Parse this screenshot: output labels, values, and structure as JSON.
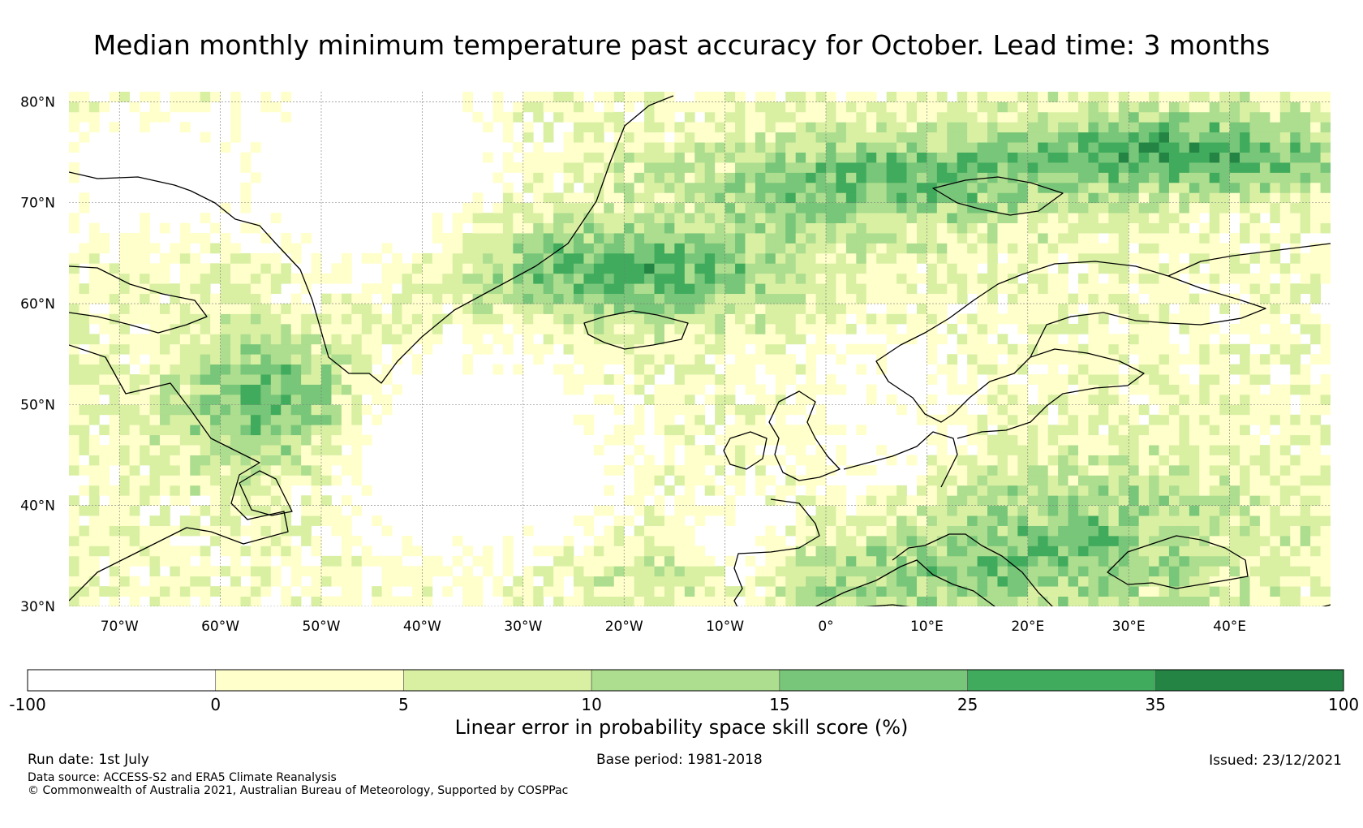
{
  "title": "Median monthly minimum temperature past accuracy for October. Lead time: 3 months",
  "map": {
    "lon_range": [
      -75,
      50
    ],
    "lat_range": [
      30,
      81
    ],
    "lat_ticks": [
      "80°N",
      "70°N",
      "60°N",
      "50°N",
      "40°N",
      "30°N"
    ],
    "lat_values": [
      80,
      70,
      60,
      50,
      40,
      30
    ],
    "lon_ticks": [
      "70°W",
      "60°W",
      "50°W",
      "40°W",
      "30°W",
      "20°W",
      "10°W",
      "0°",
      "10°E",
      "20°E",
      "30°E",
      "40°E"
    ],
    "lon_values": [
      -70,
      -60,
      -50,
      -40,
      -30,
      -20,
      -10,
      0,
      10,
      20,
      30,
      40
    ],
    "gridlines": true
  },
  "colorbar": {
    "label": "Linear error in probability space skill score (%)",
    "bounds": [
      "-100",
      "0",
      "5",
      "10",
      "15",
      "25",
      "35",
      "100"
    ],
    "colors": [
      "#ffffff",
      "#ffffcc",
      "#d9f0a3",
      "#addd8e",
      "#78c679",
      "#41ab5d",
      "#238443"
    ]
  },
  "footer": {
    "run_date": "Run date: 1st July",
    "base_period": "Base period: 1981-2018",
    "issued": "Issued: 23/12/2021",
    "data_source": "Data source: ACCESS-S2 and ERA5 Climate Reanalysis",
    "copyright": "© Commonwealth of Australia 2021, Australian Bureau of Meteorology, Supported by COSPPac"
  }
}
